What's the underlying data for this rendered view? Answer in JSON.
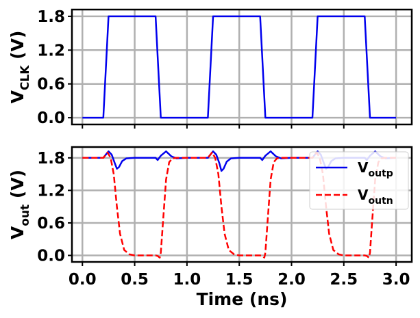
{
  "chart_data": [
    {
      "type": "line",
      "ylabel_main": "V",
      "ylabel_sub": "CLK",
      "ylabel_unit": " (V)",
      "xlim": [
        -0.1,
        3.15
      ],
      "ylim": [
        -0.12,
        1.92
      ],
      "xticks": [
        0.0,
        0.5,
        1.0,
        1.5,
        2.0,
        2.5,
        3.0
      ],
      "yticks": [
        0.0,
        0.6,
        1.2,
        1.8
      ],
      "ytick_labels": [
        "0.0",
        "0.6",
        "1.2",
        "1.8"
      ],
      "grid": true,
      "series": [
        {
          "color": "#0000ee",
          "style": "solid",
          "x": [
            0.0,
            0.2,
            0.25,
            0.7,
            0.75,
            1.2,
            1.25,
            1.7,
            1.75,
            2.2,
            2.25,
            2.7,
            2.75,
            3.0
          ],
          "y": [
            0.0,
            0.0,
            1.8,
            1.8,
            0.0,
            0.0,
            1.8,
            1.8,
            0.0,
            0.0,
            1.8,
            1.8,
            0.0,
            0.0
          ]
        }
      ]
    },
    {
      "type": "line",
      "ylabel_main": "V",
      "ylabel_sub": "out",
      "ylabel_unit": " (V)",
      "xlabel": "Time (ns)",
      "xlim": [
        -0.1,
        3.15
      ],
      "ylim": [
        -0.12,
        2.0
      ],
      "xticks": [
        0.0,
        0.5,
        1.0,
        1.5,
        2.0,
        2.5,
        3.0
      ],
      "xtick_labels": [
        "0.0",
        "0.5",
        "1.0",
        "1.5",
        "2.0",
        "2.5",
        "3.0"
      ],
      "yticks": [
        0.0,
        0.6,
        1.2,
        1.8
      ],
      "ytick_labels": [
        "0.0",
        "0.6",
        "1.2",
        "1.8"
      ],
      "grid": true,
      "legend_position": "top-right",
      "series": [
        {
          "name_main": "V",
          "name_sub": "outp",
          "color": "#0000ee",
          "style": "solid",
          "x": [
            0.0,
            0.2,
            0.22,
            0.25,
            0.28,
            0.31,
            0.33,
            0.35,
            0.38,
            0.42,
            0.5,
            0.7,
            0.72,
            0.75,
            0.8,
            0.85,
            0.9,
            1.0,
            1.2,
            1.22,
            1.25,
            1.28,
            1.31,
            1.33,
            1.35,
            1.38,
            1.42,
            1.5,
            1.7,
            1.72,
            1.75,
            1.8,
            1.85,
            1.9,
            2.0,
            2.2,
            2.22,
            2.25,
            2.28,
            2.31,
            2.33,
            2.35,
            2.38,
            2.42,
            2.5,
            2.7,
            2.72,
            2.75,
            2.8,
            2.85,
            2.9,
            3.0
          ],
          "y": [
            1.8,
            1.8,
            1.85,
            1.92,
            1.86,
            1.7,
            1.6,
            1.63,
            1.74,
            1.79,
            1.8,
            1.8,
            1.76,
            1.84,
            1.92,
            1.83,
            1.79,
            1.8,
            1.8,
            1.85,
            1.92,
            1.86,
            1.7,
            1.56,
            1.6,
            1.73,
            1.79,
            1.8,
            1.8,
            1.76,
            1.84,
            1.92,
            1.83,
            1.79,
            1.8,
            1.8,
            1.85,
            1.92,
            1.86,
            1.7,
            1.6,
            1.63,
            1.74,
            1.79,
            1.8,
            1.8,
            1.76,
            1.84,
            1.92,
            1.83,
            1.79,
            1.8
          ]
        },
        {
          "name_main": "V",
          "name_sub": "outn",
          "color": "#ff0000",
          "style": "dashed",
          "x": [
            0.0,
            0.2,
            0.24,
            0.27,
            0.3,
            0.33,
            0.36,
            0.4,
            0.45,
            0.5,
            0.6,
            0.7,
            0.72,
            0.74,
            0.75,
            0.77,
            0.8,
            0.83,
            0.86,
            0.9,
            1.0,
            1.2,
            1.24,
            1.27,
            1.3,
            1.33,
            1.36,
            1.4,
            1.45,
            1.5,
            1.6,
            1.7,
            1.72,
            1.74,
            1.75,
            1.77,
            1.8,
            1.83,
            1.86,
            1.9,
            2.0,
            2.2,
            2.24,
            2.27,
            2.3,
            2.33,
            2.36,
            2.4,
            2.45,
            2.5,
            2.6,
            2.7,
            2.72,
            2.74,
            2.75,
            2.77,
            2.8,
            2.83,
            2.86,
            2.9,
            3.0
          ],
          "y": [
            1.8,
            1.8,
            1.9,
            1.8,
            1.5,
            0.9,
            0.4,
            0.1,
            0.02,
            0.0,
            0.0,
            0.0,
            -0.01,
            -0.04,
            0.05,
            0.6,
            1.4,
            1.72,
            1.79,
            1.8,
            1.8,
            1.8,
            1.9,
            1.8,
            1.5,
            0.9,
            0.4,
            0.1,
            0.02,
            0.0,
            0.0,
            0.0,
            -0.01,
            -0.04,
            0.05,
            0.6,
            1.4,
            1.72,
            1.79,
            1.8,
            1.8,
            1.8,
            1.9,
            1.8,
            1.5,
            0.9,
            0.4,
            0.1,
            0.02,
            0.0,
            0.0,
            0.0,
            -0.01,
            -0.04,
            0.05,
            0.6,
            1.4,
            1.72,
            1.79,
            1.8,
            1.8
          ]
        }
      ]
    }
  ]
}
